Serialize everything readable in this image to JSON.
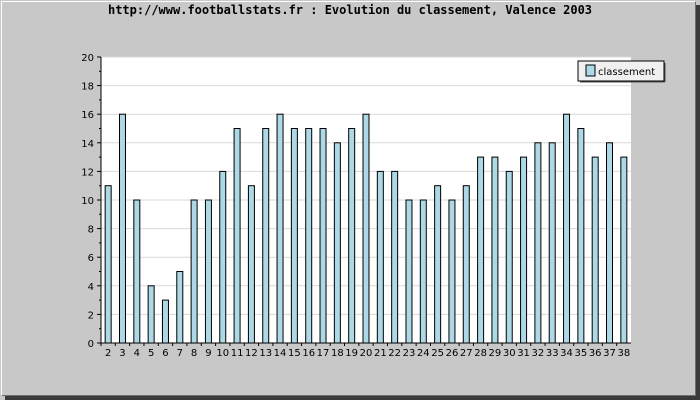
{
  "page": {
    "title": "http://www.footballstats.fr : Evolution du classement, Valence 2003"
  },
  "chart_data": {
    "type": "bar",
    "title": "http://www.footballstats.fr : Evolution du classement, Valence 2003",
    "xlabel": "",
    "ylabel": "",
    "ylim": [
      0,
      20
    ],
    "yticks": [
      0,
      2,
      4,
      6,
      8,
      10,
      12,
      14,
      16,
      18,
      20
    ],
    "grid": true,
    "legend_position": "top-right",
    "categories": [
      "2",
      "3",
      "4",
      "5",
      "6",
      "7",
      "8",
      "9",
      "10",
      "11",
      "12",
      "13",
      "14",
      "15",
      "16",
      "17",
      "18",
      "19",
      "20",
      "21",
      "22",
      "23",
      "24",
      "25",
      "26",
      "27",
      "28",
      "29",
      "30",
      "31",
      "32",
      "33",
      "34",
      "35",
      "36",
      "37",
      "38"
    ],
    "series": [
      {
        "name": "classement",
        "color": "#add8e6",
        "values": [
          11,
          16,
          10,
          4,
          3,
          5,
          10,
          10,
          12,
          15,
          11,
          15,
          16,
          15,
          15,
          15,
          14,
          15,
          16,
          12,
          12,
          10,
          10,
          11,
          10,
          11,
          13,
          13,
          12,
          13,
          14,
          14,
          16,
          15,
          13,
          14,
          13
        ]
      }
    ]
  }
}
